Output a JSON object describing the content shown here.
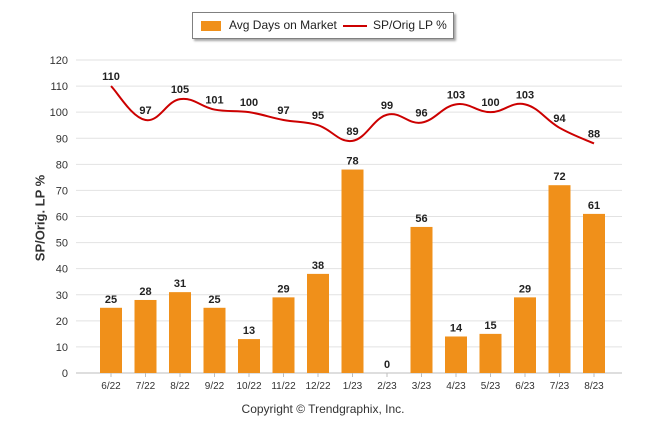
{
  "chart_data": {
    "type": "bar",
    "title": "",
    "ylabel": "SP/Orig. LP %",
    "xlabel": "",
    "ylim": [
      0,
      120
    ],
    "yticks": [
      0,
      10,
      20,
      30,
      40,
      50,
      60,
      70,
      80,
      90,
      100,
      110,
      120
    ],
    "grid": true,
    "legend_position": "top-center",
    "categories": [
      "6/22",
      "7/22",
      "8/22",
      "9/22",
      "10/22",
      "11/22",
      "12/22",
      "1/23",
      "2/23",
      "3/23",
      "4/23",
      "5/23",
      "6/23",
      "7/23",
      "8/23"
    ],
    "series": [
      {
        "name": "Avg Days on Market",
        "type": "bar",
        "color": "#f0901a",
        "values": [
          25,
          28,
          31,
          25,
          13,
          29,
          38,
          78,
          0,
          56,
          14,
          15,
          29,
          72,
          61
        ]
      },
      {
        "name": "SP/Orig LP %",
        "type": "line",
        "color": "#cc0000",
        "values": [
          110,
          97,
          105,
          101,
          100,
          97,
          95,
          89,
          99,
          96,
          103,
          100,
          103,
          94,
          88
        ]
      }
    ]
  },
  "footer": {
    "copyright": "Copyright © Trendgraphix, Inc."
  }
}
